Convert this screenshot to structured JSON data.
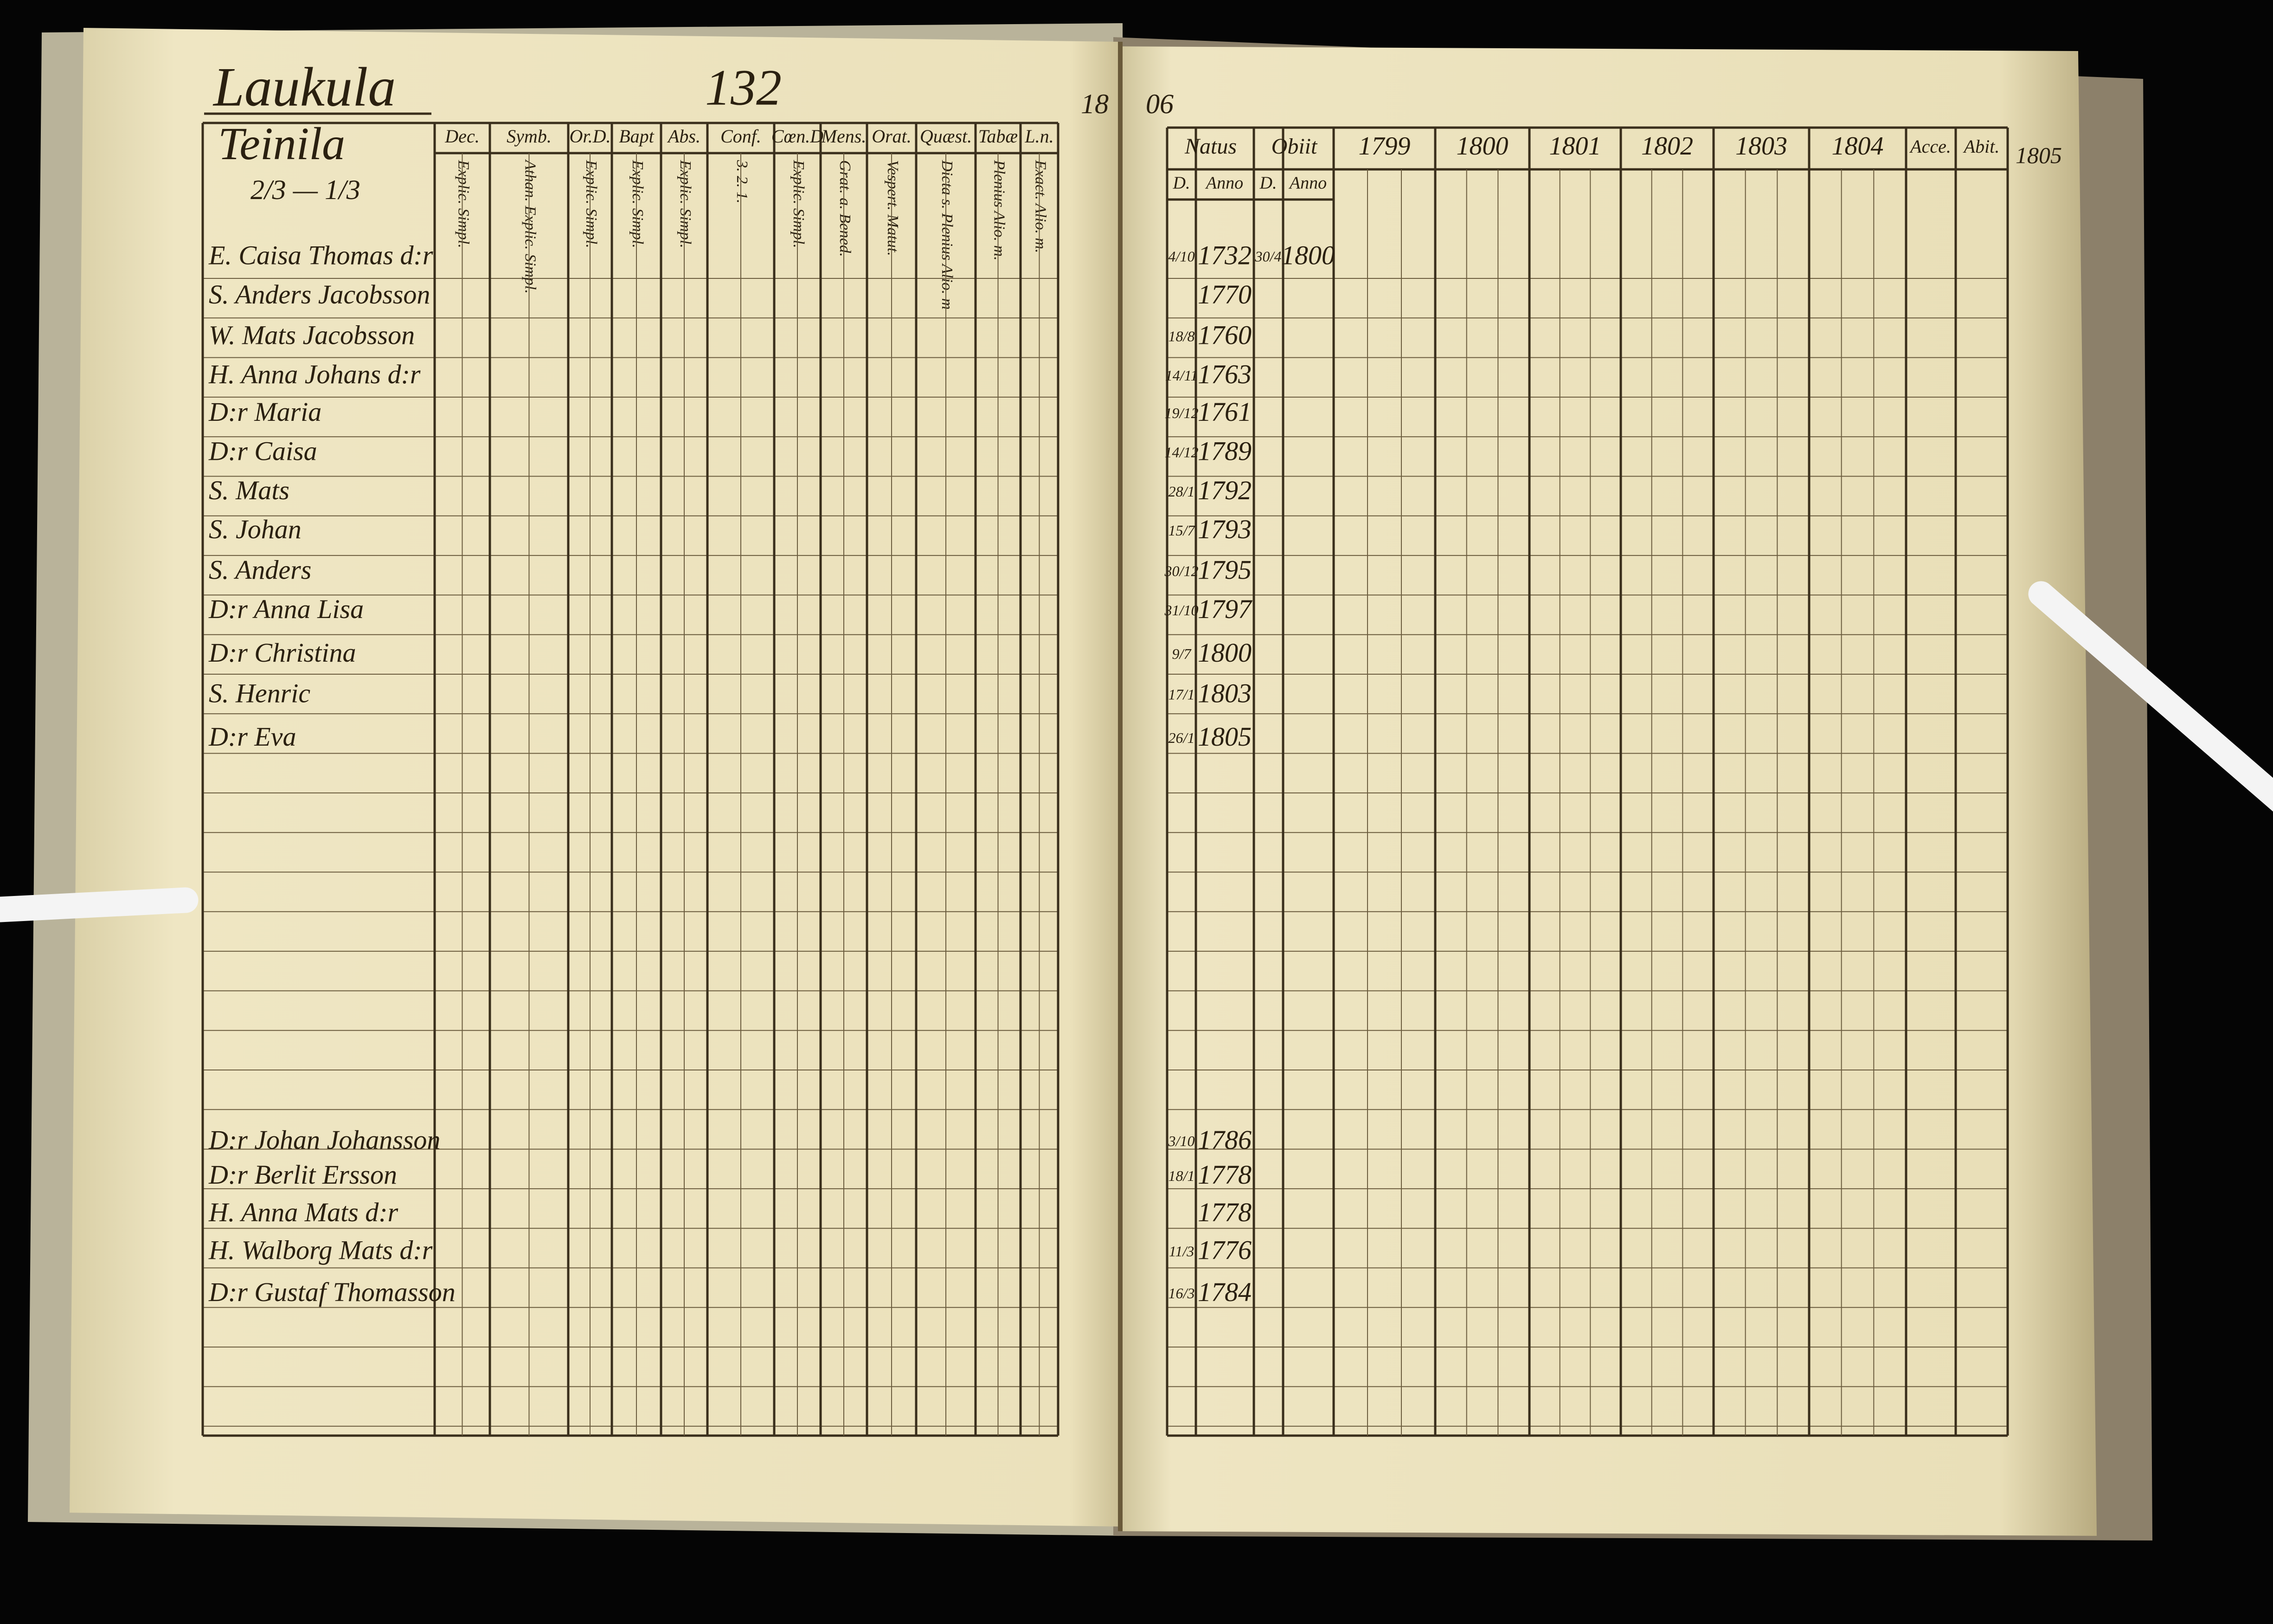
{
  "left_page": {
    "farm": "Laukula",
    "croft": "Teinila",
    "fraction": "2/3 — 1/3",
    "page_number": "132",
    "columns": [
      {
        "name": "Dec.",
        "sub": "Explic. Simpl."
      },
      {
        "name": "Symb.",
        "sub": "Athan. Explic. Simpl."
      },
      {
        "name": "Or.D.",
        "sub": "Explic. Simpl."
      },
      {
        "name": "Bapt",
        "sub": "Explic. Simpl."
      },
      {
        "name": "Abs.",
        "sub": "Explic. Simpl."
      },
      {
        "name": "Conf.",
        "sub": "3. 2. 1."
      },
      {
        "name": "Cœn.D",
        "sub": "Explic. Simpl."
      },
      {
        "name": "Mens.",
        "sub": "Grat. a. Bened."
      },
      {
        "name": "Orat.",
        "sub": "Vespert. Matut."
      },
      {
        "name": "Quæst.",
        "sub": "Dicta s. Plenius Alio. m"
      },
      {
        "name": "Tabæ",
        "sub": "Plenius Alio. m."
      },
      {
        "name": "L.n.",
        "sub": "Exact. Alio. m."
      }
    ],
    "persons": [
      "E. Caisa Thomas d:r",
      "S. Anders Jacobsson",
      "W. Mats Jacobsson",
      "H. Anna Johans d:r",
      "D:r Maria",
      "D:r Caisa",
      "S. Mats",
      "S. Johan",
      "S. Anders",
      "D:r Anna Lisa",
      "D:r Christina",
      "S. Henric",
      "D:r Eva",
      "D:r Johan Johansson",
      "D:r Berlit Ersson",
      "H. Anna Mats d:r",
      "H. Walborg Mats d:r",
      "D:r Gustaf Thomasson"
    ]
  },
  "right_page": {
    "year_left": "18",
    "year_right": "06",
    "natus": "Natus",
    "obiit": "Obiit",
    "day": "D.",
    "anno": "Anno",
    "years": [
      "1799",
      "1800",
      "1801",
      "1802",
      "1803",
      "1804"
    ],
    "accessit": "Acce.",
    "abiit": "Abit.",
    "next_year": "1805",
    "births": [
      {
        "day": "4/10",
        "year": "1732",
        "death_day": "30/4",
        "death_year": "1800"
      },
      {
        "day": null,
        "year": "1770"
      },
      {
        "day": "18/8",
        "year": "1760"
      },
      {
        "day": "14/11",
        "year": "1763"
      },
      {
        "day": "19/12",
        "year": "1761"
      },
      {
        "day": "14/12",
        "year": "1789"
      },
      {
        "day": "28/1",
        "year": "1792"
      },
      {
        "day": "15/7",
        "year": "1793"
      },
      {
        "day": "30/12",
        "year": "1795"
      },
      {
        "day": "31/10",
        "year": "1797"
      },
      {
        "day": "9/7",
        "year": "1800"
      },
      {
        "day": "17/1",
        "year": "1803"
      },
      {
        "day": "26/1",
        "year": "1805"
      },
      {
        "day": "3/10",
        "year": "1786"
      },
      {
        "day": "18/1",
        "year": "1778"
      },
      {
        "day": null,
        "year": "1778"
      },
      {
        "day": "11/3",
        "year": "1776"
      },
      {
        "day": "16/3",
        "year": "1784"
      }
    ]
  }
}
